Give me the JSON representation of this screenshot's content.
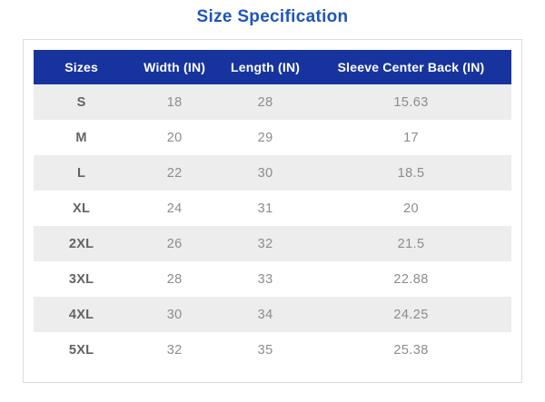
{
  "page": {
    "title": "Size Specification"
  },
  "colors": {
    "title_text": "#1E56B8",
    "header_bg": "#17349E",
    "header_text": "#FFFFFF",
    "row_alt_bg": "#EDEDED",
    "size_label_text": "#636363",
    "value_text": "#8C8C8C",
    "card_border": "#DCDCDC"
  },
  "chart_data": {
    "type": "table",
    "title": "Size Specification",
    "columns": [
      "Sizes",
      "Width (IN)",
      "Length (IN)",
      "Sleeve Center Back (IN)"
    ],
    "rows": [
      [
        "S",
        "18",
        "28",
        "15.63"
      ],
      [
        "M",
        "20",
        "29",
        "17"
      ],
      [
        "L",
        "22",
        "30",
        "18.5"
      ],
      [
        "XL",
        "24",
        "31",
        "20"
      ],
      [
        "2XL",
        "26",
        "32",
        "21.5"
      ],
      [
        "3XL",
        "28",
        "33",
        "22.88"
      ],
      [
        "4XL",
        "30",
        "34",
        "24.25"
      ],
      [
        "5XL",
        "32",
        "35",
        "25.38"
      ]
    ]
  }
}
